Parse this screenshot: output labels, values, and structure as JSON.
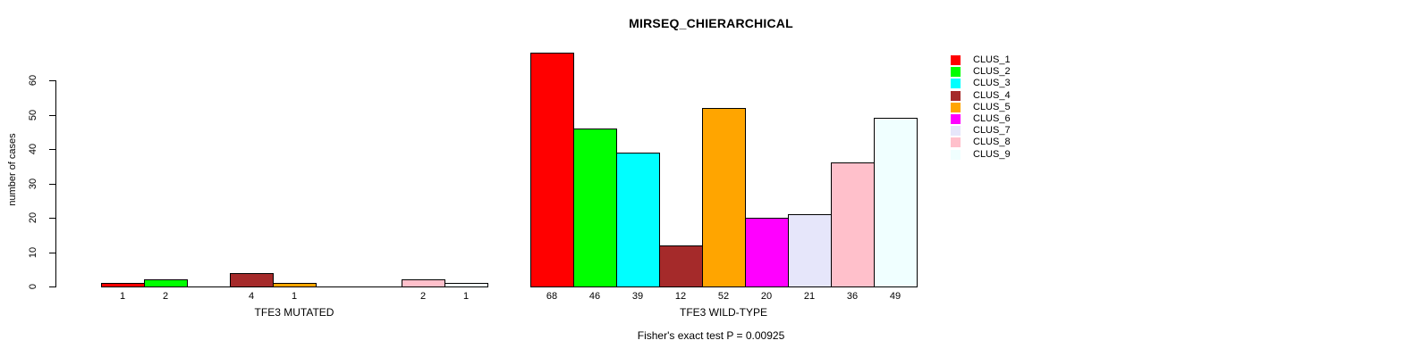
{
  "chart_data": {
    "type": "bar",
    "title": "MIRSEQ_CHIERARCHICAL",
    "ylabel": "number of cases",
    "xlabel": "",
    "ylim": [
      0,
      60
    ],
    "yticks": [
      0,
      10,
      20,
      30,
      40,
      50,
      60
    ],
    "grid": false,
    "legend_position": "right-top",
    "series_labels": [
      "CLUS_1",
      "CLUS_2",
      "CLUS_3",
      "CLUS_4",
      "CLUS_5",
      "CLUS_6",
      "CLUS_7",
      "CLUS_8",
      "CLUS_9"
    ],
    "series_colors": [
      "#ff0000",
      "#00ff00",
      "#00ffff",
      "#a52a2a",
      "#ffa500",
      "#ff00ff",
      "#e6e6fa",
      "#ffc0cb",
      "#f0ffff"
    ],
    "bar_outline_color": "#000000",
    "groups": [
      {
        "label": "TFE3 MUTATED",
        "values": [
          1,
          2,
          0,
          4,
          1,
          0,
          0,
          2,
          1
        ],
        "bar_labels": [
          "1",
          "2",
          "",
          "4",
          "1",
          "",
          "",
          "2",
          "1"
        ]
      },
      {
        "label": "TFE3 WILD-TYPE",
        "values": [
          68,
          46,
          39,
          12,
          52,
          20,
          21,
          36,
          49
        ],
        "bar_labels": [
          "68",
          "46",
          "39",
          "12",
          "52",
          "20",
          "21",
          "36",
          "49"
        ]
      }
    ],
    "annotation": "Fisher's exact test P = 0.00925"
  }
}
